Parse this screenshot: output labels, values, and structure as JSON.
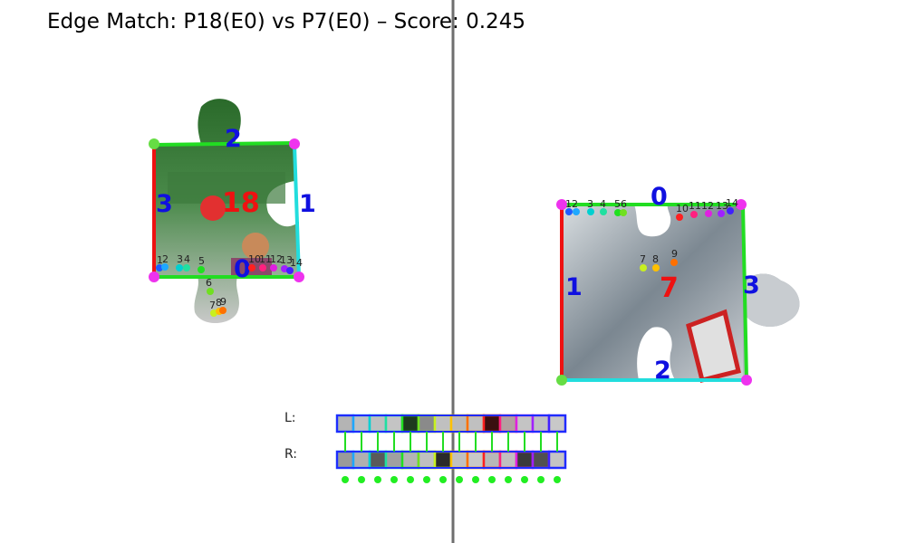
{
  "title": "Edge Match: P18(E0) vs P7(E0) – Score: 0.245",
  "colors": {
    "divider": "#6e6e6e",
    "edge_red": "#ee1111",
    "edge_green": "#22dd22",
    "edge_cyan": "#22dddd",
    "corner": "#ee33ee",
    "num_blue": "#1010e0"
  },
  "left_piece": {
    "id_label": "18",
    "edge_labels": [
      "0",
      "1",
      "2",
      "3"
    ],
    "point_labels": [
      "1",
      "2",
      "3",
      "4",
      "5",
      "6",
      "7",
      "8",
      "9",
      "10",
      "11",
      "12",
      "13",
      "14"
    ]
  },
  "right_piece": {
    "id_label": "7",
    "edge_labels": [
      "0",
      "1",
      "2",
      "3"
    ],
    "point_labels": [
      "1",
      "2",
      "3",
      "4",
      "5",
      "6",
      "7",
      "8",
      "9",
      "10",
      "11",
      "12",
      "13",
      "14"
    ]
  },
  "comparison": {
    "left_label": "L:",
    "right_label": "R:",
    "point_colors": [
      "#1e5cff",
      "#1ea8ff",
      "#00d0d0",
      "#20e0a0",
      "#20e020",
      "#70e020",
      "#c8f020",
      "#ffc000",
      "#ff7000",
      "#ff2020",
      "#ff2080",
      "#e020e0",
      "#a020ff",
      "#4020ff"
    ],
    "left_swatches": [
      "#b4b4b4",
      "#c0c0c0",
      "#bfbfbf",
      "#c4c4c4",
      "#1e3a1e",
      "#8a8a8a",
      "#c0c0c0",
      "#bababa",
      "#c0c0c0",
      "#3a1010",
      "#b0a0a0",
      "#c4c4c4",
      "#c0c0c0",
      "#c8c8c8"
    ],
    "right_swatches": [
      "#9a9a9a",
      "#b0b0b0",
      "#5a5a5a",
      "#a0a0a0",
      "#b4b4b4",
      "#c0c0c0",
      "#2a2a2a",
      "#c0c0c0",
      "#c8c8c8",
      "#b8b8b8",
      "#c0c0c0",
      "#3a3a3a",
      "#505050",
      "#c4c4c4"
    ]
  }
}
